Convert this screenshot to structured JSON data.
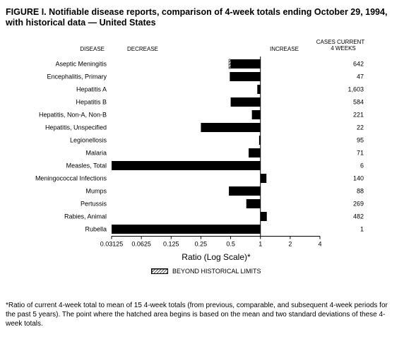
{
  "title": "FIGURE I. Notifiable disease reports, comparison of 4-week totals ending October 29, 1994, with historical data — United States",
  "footnote": "*Ratio of current 4-week total to mean of 15 4-week totals (from previous, comparable, and subsequent 4-week periods for the past 5 years). The point where the hatched area begins is based on the mean and two standard deviations of these 4-week totals.",
  "headers": {
    "disease": "DISEASE",
    "decrease": "DECREASE",
    "increase": "INCREASE",
    "cases_line1": "CASES CURRENT",
    "cases_line2": "4 WEEKS"
  },
  "legend": {
    "label": "BEYOND HISTORICAL LIMITS"
  },
  "chart_data": {
    "type": "bar",
    "orientation": "horizontal",
    "xscale": "log2",
    "xlabel": "Ratio (Log Scale)*",
    "xlim": [
      0.03125,
      4
    ],
    "xticks": [
      "0.03125",
      "0.0625",
      "0.125",
      "0.25",
      "0.5",
      "1",
      "2",
      "4"
    ],
    "xtick_values": [
      0.03125,
      0.0625,
      0.125,
      0.25,
      0.5,
      1,
      2,
      4
    ],
    "categories": [
      "Aseptic Meningitis",
      "Encephalitis, Primary",
      "Hepatitis A",
      "Hepatitis B",
      "Hepatitis, Non-A, Non-B",
      "Hepatitis, Unspecified",
      "Legionellosis",
      "Malaria",
      "Measles, Total",
      "Meningococcal Infections",
      "Mumps",
      "Pertussis",
      "Rabies, Animal",
      "Rubella"
    ],
    "values": [
      0.48,
      0.49,
      0.93,
      0.5,
      0.82,
      0.25,
      0.97,
      0.76,
      0.031,
      1.15,
      0.48,
      0.72,
      1.16,
      0.031
    ],
    "cases": [
      "642",
      "47",
      "1,603",
      "584",
      "221",
      "22",
      "95",
      "71",
      "6",
      "140",
      "88",
      "269",
      "482",
      "1"
    ],
    "beyond_historical_limits": [
      true,
      false,
      false,
      false,
      false,
      false,
      false,
      false,
      false,
      false,
      false,
      false,
      false,
      false
    ],
    "hatched_from": [
      0.5,
      null,
      null,
      null,
      null,
      null,
      null,
      null,
      null,
      null,
      null,
      null,
      null,
      null
    ]
  }
}
